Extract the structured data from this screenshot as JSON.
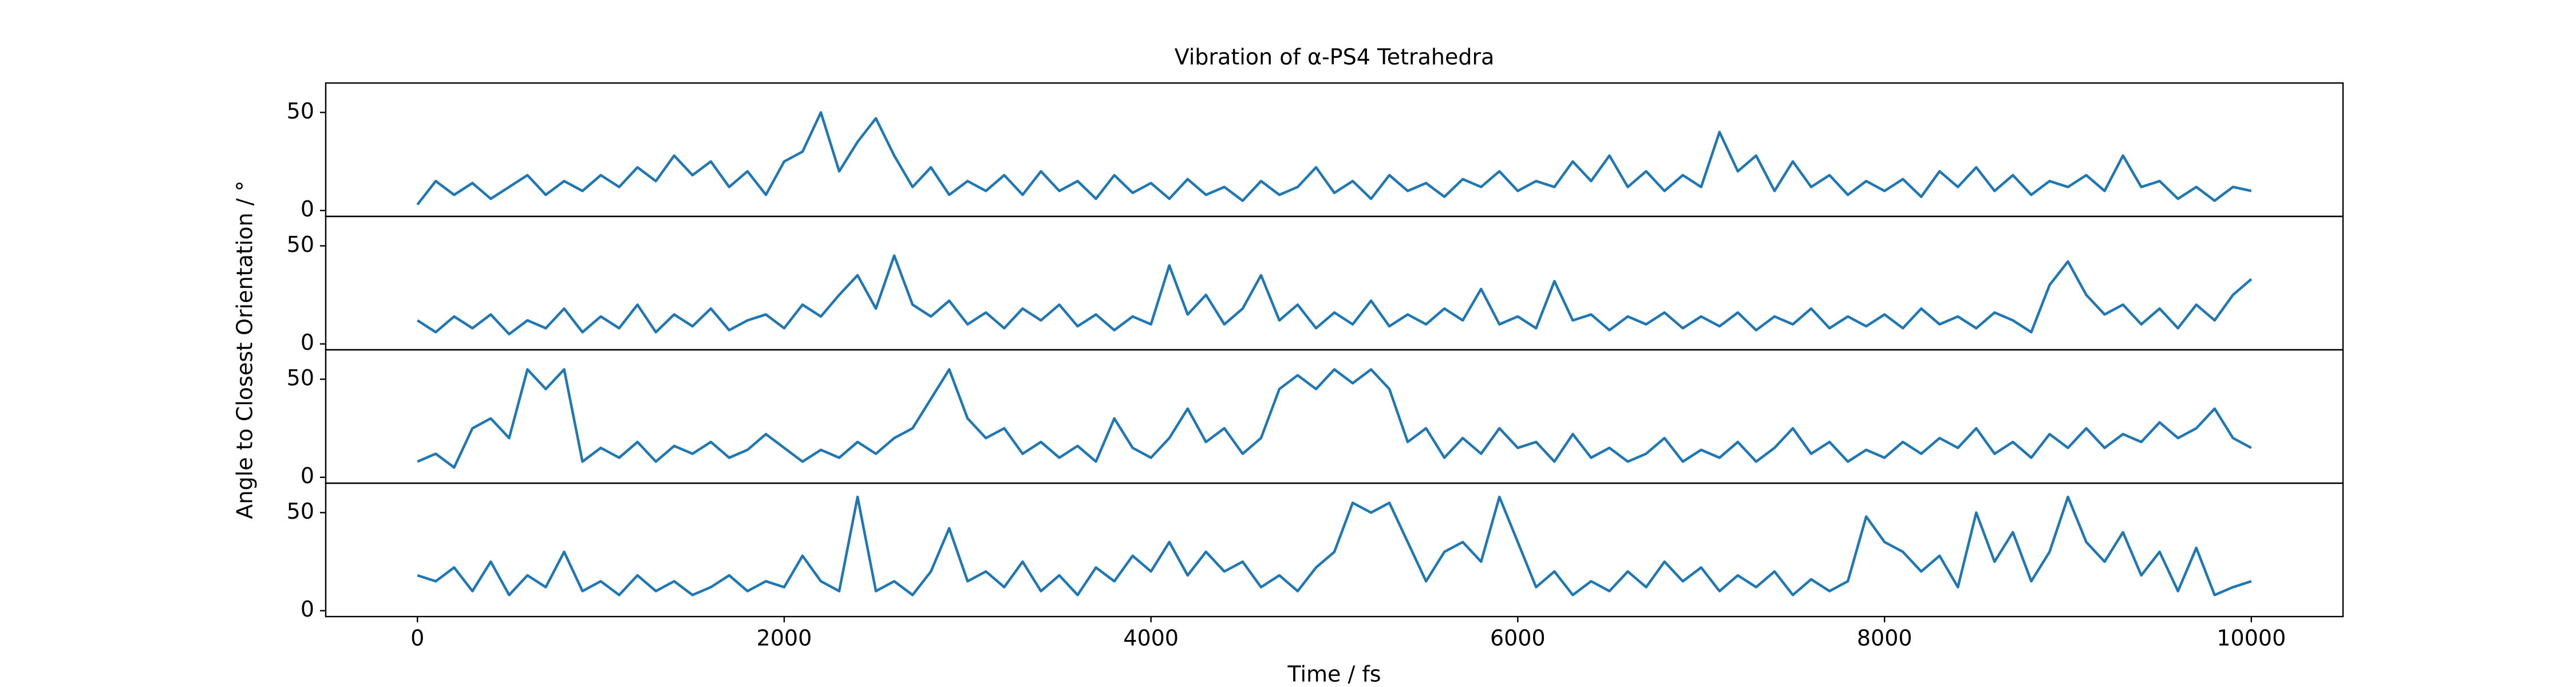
{
  "chart_data": {
    "type": "line",
    "title": "Vibration of α-PS4 Tetrahedra",
    "xlabel": "Time / fs",
    "ylabel": "Angle to Closest Orientation / °",
    "color": "#1f77b4",
    "xlim": [
      -500,
      10500
    ],
    "xticks": [
      0,
      2000,
      4000,
      6000,
      8000,
      10000
    ],
    "x": [
      0,
      100,
      200,
      300,
      400,
      500,
      600,
      700,
      800,
      900,
      1000,
      1100,
      1200,
      1300,
      1400,
      1500,
      1600,
      1700,
      1800,
      1900,
      2000,
      2100,
      2200,
      2300,
      2400,
      2500,
      2600,
      2700,
      2800,
      2900,
      3000,
      3100,
      3200,
      3300,
      3400,
      3500,
      3600,
      3700,
      3800,
      3900,
      4000,
      4100,
      4200,
      4300,
      4400,
      4500,
      4600,
      4700,
      4800,
      4900,
      5000,
      5100,
      5200,
      5300,
      5400,
      5500,
      5600,
      5700,
      5800,
      5900,
      6000,
      6100,
      6200,
      6300,
      6400,
      6500,
      6600,
      6700,
      6800,
      6900,
      7000,
      7100,
      7200,
      7300,
      7400,
      7500,
      7600,
      7700,
      7800,
      7900,
      8000,
      8100,
      8200,
      8300,
      8400,
      8500,
      8600,
      8700,
      8800,
      8900,
      9000,
      9100,
      9200,
      9300,
      9400,
      9500,
      9600,
      9700,
      9800,
      9900,
      10000
    ],
    "panels": [
      {
        "ylim": [
          -3,
          65
        ],
        "yticks": [
          0,
          50
        ],
        "values": [
          3,
          15,
          8,
          14,
          6,
          12,
          18,
          8,
          15,
          10,
          18,
          12,
          22,
          15,
          28,
          18,
          25,
          12,
          20,
          8,
          25,
          30,
          50,
          20,
          35,
          47,
          28,
          12,
          22,
          8,
          15,
          10,
          18,
          8,
          20,
          10,
          15,
          6,
          18,
          9,
          14,
          6,
          16,
          8,
          12,
          5,
          15,
          8,
          12,
          22,
          9,
          15,
          6,
          18,
          10,
          14,
          7,
          16,
          12,
          20,
          10,
          15,
          12,
          25,
          15,
          28,
          12,
          20,
          10,
          18,
          12,
          40,
          20,
          28,
          10,
          25,
          12,
          18,
          8,
          15,
          10,
          16,
          7,
          20,
          12,
          22,
          10,
          18,
          8,
          15,
          12,
          18,
          10,
          28,
          12,
          15,
          6,
          12,
          5,
          12,
          10
        ]
      },
      {
        "ylim": [
          -3,
          65
        ],
        "yticks": [
          0,
          50
        ],
        "values": [
          12,
          6,
          14,
          8,
          15,
          5,
          12,
          8,
          18,
          6,
          14,
          8,
          20,
          6,
          15,
          9,
          18,
          7,
          12,
          15,
          8,
          20,
          14,
          25,
          35,
          18,
          45,
          20,
          14,
          22,
          10,
          16,
          8,
          18,
          12,
          20,
          9,
          15,
          7,
          14,
          10,
          40,
          15,
          25,
          10,
          18,
          35,
          12,
          20,
          8,
          16,
          10,
          22,
          9,
          15,
          10,
          18,
          12,
          28,
          10,
          14,
          8,
          32,
          12,
          15,
          7,
          14,
          10,
          16,
          8,
          14,
          9,
          16,
          7,
          14,
          10,
          18,
          8,
          14,
          9,
          15,
          8,
          18,
          10,
          14,
          8,
          16,
          12,
          6,
          30,
          42,
          25,
          15,
          20,
          10,
          18,
          8,
          20,
          12,
          25,
          33
        ]
      },
      {
        "ylim": [
          -3,
          65
        ],
        "yticks": [
          0,
          50
        ],
        "values": [
          8,
          12,
          5,
          25,
          30,
          20,
          55,
          45,
          55,
          8,
          15,
          10,
          18,
          8,
          16,
          12,
          18,
          10,
          14,
          22,
          15,
          8,
          14,
          10,
          18,
          12,
          20,
          25,
          40,
          55,
          30,
          20,
          25,
          12,
          18,
          10,
          16,
          8,
          30,
          15,
          10,
          20,
          35,
          18,
          25,
          12,
          20,
          45,
          52,
          45,
          55,
          48,
          55,
          45,
          18,
          25,
          10,
          20,
          12,
          25,
          15,
          18,
          8,
          22,
          10,
          15,
          8,
          12,
          20,
          8,
          14,
          10,
          18,
          8,
          15,
          25,
          12,
          18,
          8,
          14,
          10,
          18,
          12,
          20,
          15,
          25,
          12,
          18,
          10,
          22,
          15,
          25,
          15,
          22,
          18,
          28,
          20,
          25,
          35,
          20,
          15
        ]
      },
      {
        "ylim": [
          -3,
          65
        ],
        "yticks": [
          0,
          50
        ],
        "values": [
          18,
          15,
          22,
          10,
          25,
          8,
          18,
          12,
          30,
          10,
          15,
          8,
          18,
          10,
          15,
          8,
          12,
          18,
          10,
          15,
          12,
          28,
          15,
          10,
          58,
          10,
          15,
          8,
          20,
          42,
          15,
          20,
          12,
          25,
          10,
          18,
          8,
          22,
          15,
          28,
          20,
          35,
          18,
          30,
          20,
          25,
          12,
          18,
          10,
          22,
          30,
          55,
          50,
          55,
          35,
          15,
          30,
          35,
          25,
          58,
          35,
          12,
          20,
          8,
          15,
          10,
          20,
          12,
          25,
          15,
          22,
          10,
          18,
          12,
          20,
          8,
          16,
          10,
          15,
          48,
          35,
          30,
          20,
          28,
          12,
          50,
          25,
          40,
          15,
          30,
          58,
          35,
          25,
          40,
          18,
          30,
          10,
          32,
          8,
          12,
          15
        ]
      }
    ]
  }
}
